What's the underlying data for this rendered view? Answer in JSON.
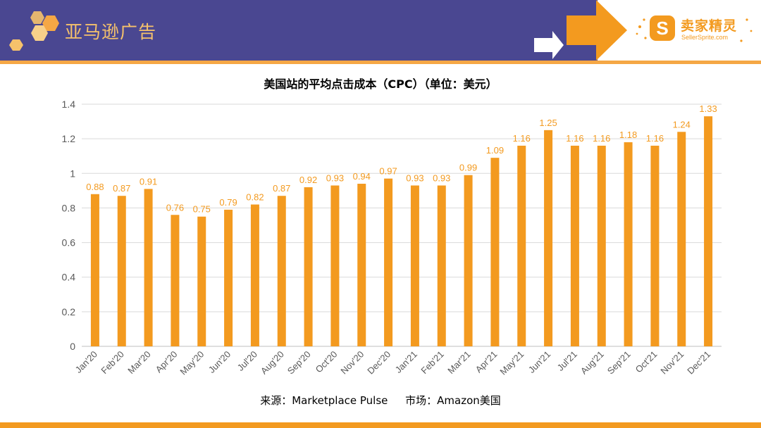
{
  "header": {
    "title": "亚马逊广告",
    "logo_cn": "卖家精灵",
    "logo_en": "SellerSprite.com"
  },
  "colors": {
    "brand_purple": "#4a4791",
    "accent_orange": "#f39a1f",
    "light_orange": "#f5a745"
  },
  "footer": {
    "source": "来源：Marketplace Pulse",
    "market": "市场：Amazon美国"
  },
  "chart_data": {
    "type": "bar",
    "title": "美国站的平均点击成本（CPC）（单位：美元）",
    "categories": [
      "Jan'20",
      "Feb'20",
      "Mar'20",
      "Apr'20",
      "May'20",
      "Jun'20",
      "Jul'20",
      "Aug'20",
      "Sep'20",
      "Oct'20",
      "Nov'20",
      "Dec'20",
      "Jan'21",
      "Feb'21",
      "Mar'21",
      "Apr'21",
      "May'21",
      "Jun'21",
      "Jul'21",
      "Aug'21",
      "Sep'21",
      "Oct'21",
      "Nov'21",
      "Dec'21"
    ],
    "values": [
      0.88,
      0.87,
      0.91,
      0.76,
      0.75,
      0.79,
      0.82,
      0.87,
      0.92,
      0.93,
      0.94,
      0.97,
      0.93,
      0.93,
      0.99,
      1.09,
      1.16,
      1.25,
      1.16,
      1.16,
      1.18,
      1.16,
      1.24,
      1.33
    ],
    "value_labels": [
      "0.88",
      "0.87",
      "0.91",
      "0.76",
      "0.75",
      "0.79",
      "0.82",
      "0.87",
      "0.92",
      "0.93",
      "0.94",
      "0.97",
      "0.93",
      "0.93",
      "0.99",
      "1.09",
      "1.16",
      "1.25",
      "1.16",
      "1.16",
      "1.18",
      "1.16",
      "1.24",
      "1.33"
    ],
    "yticks": [
      "0",
      "0.2",
      "0.4",
      "0.6",
      "0.8",
      "1",
      "1.2",
      "1.4"
    ],
    "ylim": [
      0,
      1.4
    ],
    "xlabel": "",
    "ylabel": "",
    "grid": true,
    "bar_color": "#f39a1f"
  }
}
